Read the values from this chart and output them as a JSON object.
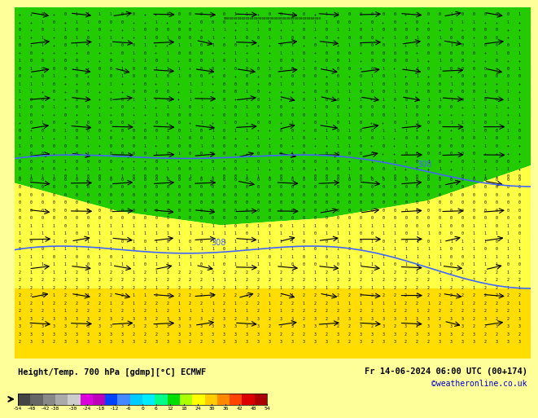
{
  "title_left": "Height/Temp. 700 hPa [gdmp][°C] ECMWF",
  "title_right": "Fr 14-06-2024 06:00 UTC (00+174)",
  "credit": "©weatheronline.co.uk",
  "colorbar_ticks": [
    -54,
    -48,
    -42,
    -38,
    -30,
    -24,
    -18,
    -12,
    -6,
    0,
    6,
    12,
    18,
    24,
    30,
    36,
    42,
    48,
    54
  ],
  "colorbar_colors": [
    "#555555",
    "#777777",
    "#999999",
    "#bbbbbb",
    "#dddddd",
    "#ee00ee",
    "#cc00cc",
    "#aa00aa",
    "#0000ff",
    "#4488ff",
    "#00ccff",
    "#00ffff",
    "#00ff88",
    "#00cc00",
    "#88ff00",
    "#ffff00",
    "#ffcc00",
    "#ff8800",
    "#ff4400",
    "#ff0000",
    "#cc0000"
  ],
  "bg_color": "#ffff99",
  "map_colors": {
    "green": "#00cc00",
    "yellow": "#ffff00",
    "light_yellow": "#ffffaa"
  },
  "contour_value": 308,
  "contour_color": "#4466ff",
  "wind_color": "#000000",
  "text_color": "#000000",
  "digit_colors": {
    "green_bg": "#000000",
    "yellow_bg": "#000000"
  }
}
